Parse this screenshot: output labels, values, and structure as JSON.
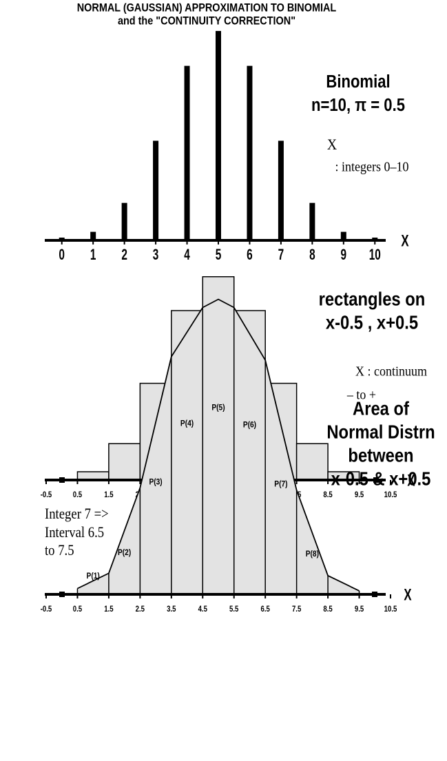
{
  "title": [
    "NORMAL (GAUSSIAN) APPROXIMATION TO BINOMIAL",
    "and the \"CONTINUITY CORRECTION\""
  ],
  "chart_data": [
    {
      "type": "bar",
      "x": [
        0,
        1,
        2,
        3,
        4,
        5,
        6,
        7,
        8,
        9,
        10
      ],
      "values": [
        0.001,
        0.01,
        0.044,
        0.117,
        0.205,
        0.246,
        0.205,
        0.117,
        0.044,
        0.01,
        0.001
      ],
      "xlim": [
        -0.5,
        10.5
      ],
      "ylim": [
        0,
        0.25
      ],
      "xticks": [
        0,
        1,
        2,
        3,
        4,
        5,
        6,
        7,
        8,
        9,
        10
      ],
      "x_label": "X",
      "color": "#000000",
      "annotations": [
        "Binomial",
        "n=10, π = 0.5",
        "X",
        ": integers 0–10"
      ]
    },
    {
      "type": "histogram",
      "bins": [
        0.5,
        1.5,
        2.5,
        3.5,
        4.5,
        5.5,
        6.5,
        7.5,
        8.5,
        9.5
      ],
      "values": [
        0.01,
        0.044,
        0.117,
        0.205,
        0.246,
        0.205,
        0.117,
        0.044,
        0.01
      ],
      "xlim": [
        -0.5,
        10.5
      ],
      "ylim": [
        0,
        0.25
      ],
      "xticks": [
        -0.5,
        0.5,
        1.5,
        2.5,
        3.5,
        4.5,
        5.5,
        6.5,
        7.5,
        8.5,
        9.5,
        10.5
      ],
      "x_label": "X",
      "color": "#e3e3e3",
      "annotations": [
        "rectangles on",
        "x-0.5 , x+0.5",
        "X : continuum",
        "–     to +"
      ]
    },
    {
      "type": "area",
      "x": [
        0.5,
        1.5,
        2.5,
        3.5,
        4.5,
        5,
        5.5,
        6.5,
        7.5,
        8.5,
        9.5
      ],
      "values": [
        0.005,
        0.018,
        0.091,
        0.203,
        0.245,
        0.252,
        0.245,
        0.2,
        0.089,
        0.016,
        0.003
      ],
      "xlim": [
        -0.5,
        10.5
      ],
      "ylim": [
        0,
        0.26
      ],
      "xticks": [
        -0.5,
        0.5,
        1.5,
        2.5,
        3.5,
        4.5,
        5.5,
        6.5,
        7.5,
        8.5,
        9.5,
        10.5
      ],
      "x_label": "X",
      "color": "#e3e3e3",
      "interval_labels": [
        "P(1)",
        "P(2)",
        "P(3)",
        "P(4)",
        "P(5)",
        "P(6)",
        "P(7)",
        "P(8)"
      ],
      "annotations": [
        "Area of",
        "Normal Distrn",
        "between",
        "x-0.5 & x+0.5"
      ],
      "note": [
        "Integer 7 =>",
        "Interval 6.5",
        "to 7.5"
      ]
    }
  ]
}
